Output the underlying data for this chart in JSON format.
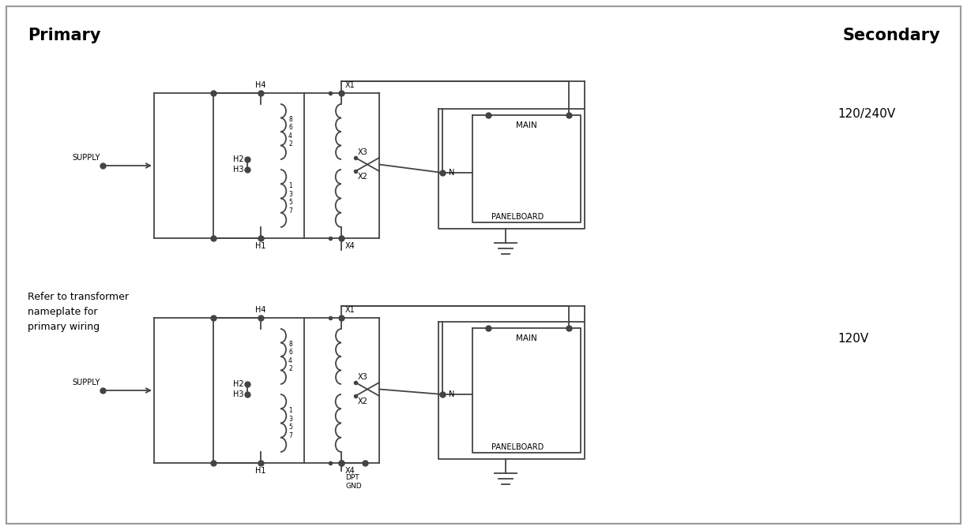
{
  "bg_color": "#ffffff",
  "border_color": "#999999",
  "line_color": "#444444",
  "title_primary": "Primary",
  "title_secondary": "Secondary",
  "label_240": "120/240V",
  "label_120": "120V",
  "note": "Refer to transformer\nnameplate for\nprimary wiring",
  "coil_numbers_upper": "8\n6\n4\n2",
  "coil_numbers_lower": "1\n3\n5\n7"
}
